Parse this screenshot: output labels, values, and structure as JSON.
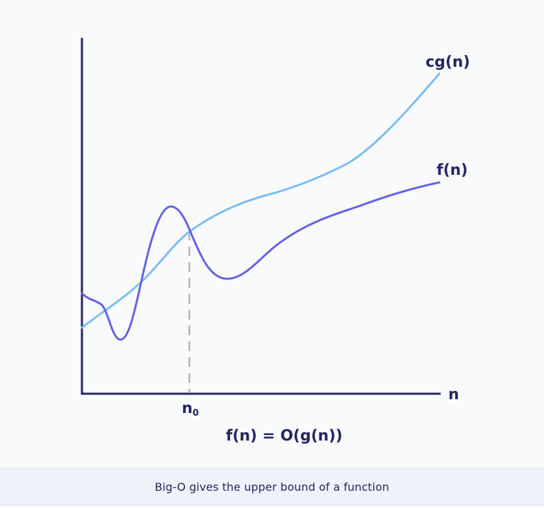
{
  "diagram": {
    "labels": {
      "upper_curve": "cg(n)",
      "function_curve": "f(n)",
      "x_axis": "n",
      "n_zero_base": "n",
      "n_zero_sub": "0",
      "formula": "f(n) = O(g(n))"
    },
    "colors": {
      "upper_curve": "#7cbcf2",
      "function_curve": "#6262e3",
      "axis": "#25265e",
      "threshold_line": "#b3b3b3"
    }
  },
  "caption": {
    "text": "Big-O gives the upper bound of a function"
  }
}
